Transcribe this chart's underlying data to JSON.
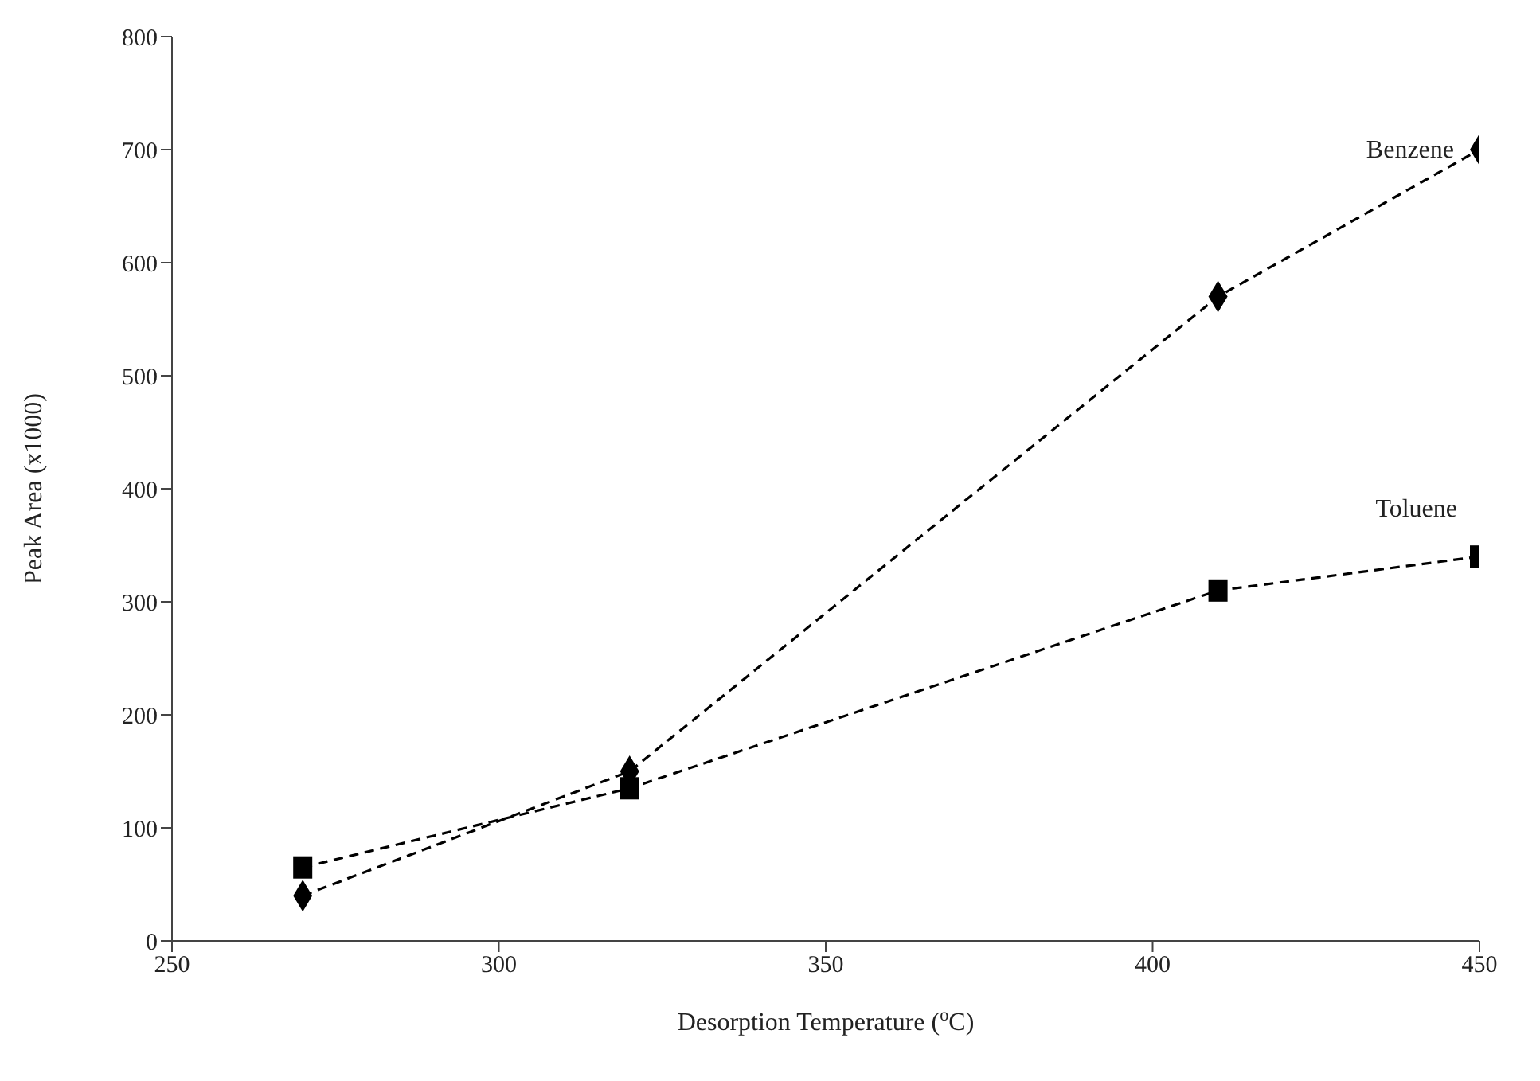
{
  "chart_data": {
    "type": "line",
    "xlabel": "Desorption Temperature ($^{o}$C)",
    "ylabel": "Peak Area (x1000)",
    "xlim": [
      250,
      450
    ],
    "xticks": [
      250,
      300,
      350,
      400,
      450
    ],
    "ylim": [
      0,
      800
    ],
    "yticks": [
      0,
      100,
      200,
      300,
      400,
      500,
      600,
      700,
      800
    ],
    "grid": false,
    "legend": false,
    "line_style": "dashed",
    "series": [
      {
        "name": "Benzene",
        "color": "#000000",
        "marker": "diamond",
        "x": [
          270,
          320,
          410,
          450
        ],
        "values": [
          40,
          150,
          570,
          700
        ]
      },
      {
        "name": "Toluene",
        "color": "#000000",
        "marker": "square",
        "x": [
          270,
          320,
          410,
          450
        ],
        "values": [
          65,
          135,
          310,
          340
        ]
      }
    ]
  }
}
